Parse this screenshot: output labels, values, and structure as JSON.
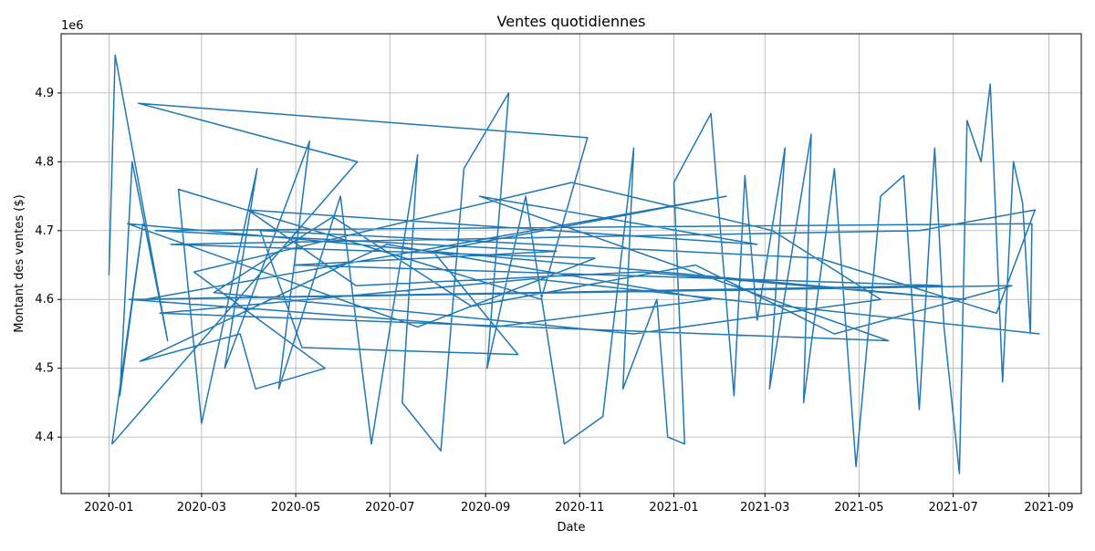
{
  "chart_data": {
    "type": "line",
    "title": "Ventes quotidiennes",
    "x_label": "Date",
    "y_label": "Montant des ventes ($)",
    "y_offset_label": "1e6",
    "color": "#1f77b4",
    "grid": true,
    "xlim": [
      -31,
      630
    ],
    "xticks": [
      {
        "value": 0,
        "label": "2020-01"
      },
      {
        "value": 60,
        "label": "2020-03"
      },
      {
        "value": 121,
        "label": "2020-05"
      },
      {
        "value": 182,
        "label": "2020-07"
      },
      {
        "value": 244,
        "label": "2020-09"
      },
      {
        "value": 305,
        "label": "2020-11"
      },
      {
        "value": 366,
        "label": "2021-01"
      },
      {
        "value": 425,
        "label": "2021-03"
      },
      {
        "value": 486,
        "label": "2021-05"
      },
      {
        "value": 547,
        "label": "2021-07"
      },
      {
        "value": 609,
        "label": "2021-09"
      }
    ],
    "ylim": [
      4.318,
      4.986
    ],
    "yticks": [
      4.4,
      4.5,
      4.6,
      4.7,
      4.8,
      4.9
    ],
    "x": [
      0,
      4,
      38,
      15,
      7,
      22,
      2,
      161,
      19,
      310,
      280,
      45,
      60,
      96,
      75,
      130,
      110,
      150,
      170,
      200,
      190,
      215,
      230,
      259,
      245,
      270,
      295,
      320,
      340,
      333,
      355,
      362,
      373,
      366,
      390,
      405,
      412,
      420,
      438,
      428,
      455,
      450,
      470,
      484,
      500,
      515,
      525,
      535,
      541,
      551,
      556,
      565,
      571,
      579,
      586,
      592,
      597,
      598,
      30,
      290,
      120,
      540,
      13,
      250,
      390,
      180,
      20,
      85,
      95,
      140,
      55,
      300,
      430,
      500,
      340,
      68,
      145,
      235,
      380,
      470,
      585,
      23,
      400,
      210,
      265,
      125,
      98,
      460,
      575,
      600,
      525,
      40,
      315,
      200,
      12,
      555,
      345,
      160,
      90,
      420,
      240,
      505,
      33,
      275,
      603
    ],
    "values": [
      4.635,
      4.955,
      4.54,
      4.8,
      4.46,
      4.71,
      4.39,
      4.8,
      4.885,
      4.835,
      4.6,
      4.76,
      4.42,
      4.79,
      4.5,
      4.83,
      4.47,
      4.75,
      4.39,
      4.81,
      4.45,
      4.38,
      4.79,
      4.9,
      4.5,
      4.75,
      4.39,
      4.43,
      4.82,
      4.47,
      4.6,
      4.4,
      4.39,
      4.77,
      4.87,
      4.46,
      4.78,
      4.57,
      4.82,
      4.47,
      4.84,
      4.45,
      4.79,
      4.357,
      4.75,
      4.78,
      4.44,
      4.82,
      4.56,
      4.347,
      4.86,
      4.8,
      4.913,
      4.48,
      4.8,
      4.74,
      4.55,
      4.71,
      4.7,
      4.67,
      4.65,
      4.62,
      4.6,
      4.56,
      4.6,
      4.68,
      4.51,
      4.55,
      4.47,
      4.5,
      4.64,
      4.77,
      4.7,
      4.6,
      4.55,
      4.61,
      4.72,
      4.59,
      4.65,
      4.55,
      4.62,
      4.6,
      4.75,
      4.67,
      4.52,
      4.53,
      4.7,
      4.66,
      4.58,
      4.73,
      4.7,
      4.68,
      4.66,
      4.56,
      4.71,
      4.6,
      4.64,
      4.62,
      4.73,
      4.68,
      4.75,
      4.54,
      4.58,
      4.63,
      4.55
    ]
  }
}
